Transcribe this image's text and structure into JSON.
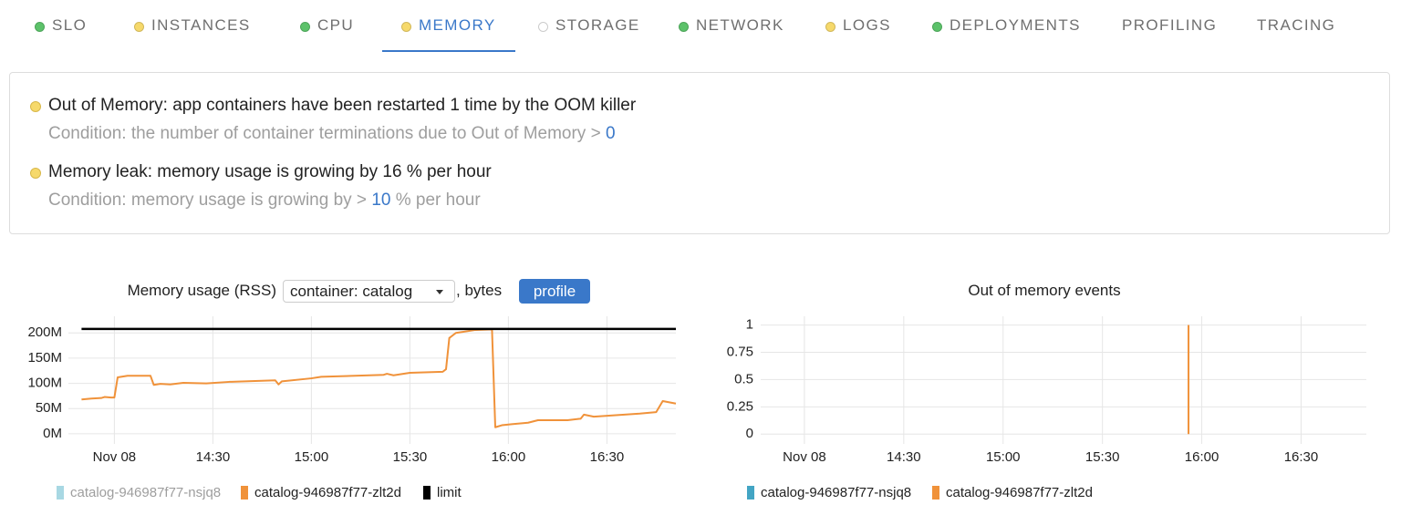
{
  "tabs": [
    {
      "label": "SLO",
      "status": "#5cc26a"
    },
    {
      "label": "INSTANCES",
      "status": "#f6d96b"
    },
    {
      "label": "CPU",
      "status": "#5cc26a"
    },
    {
      "label": "MEMORY",
      "status": "#f6d96b",
      "active": true
    },
    {
      "label": "STORAGE",
      "status": "#ffffff"
    },
    {
      "label": "NETWORK",
      "status": "#5cc26a"
    },
    {
      "label": "LOGS",
      "status": "#f6d96b"
    },
    {
      "label": "DEPLOYMENTS",
      "status": "#5cc26a"
    },
    {
      "label": "PROFILING"
    },
    {
      "label": "TRACING"
    }
  ],
  "alerts": [
    {
      "status": "#f6d96b",
      "title": "Out of Memory: app containers have been restarted 1 time by the OOM killer",
      "condition": "Condition: the number of container terminations due to Out of Memory > ",
      "threshold": 0
    },
    {
      "status": "#f6d96b",
      "title": "Memory leak: memory usage is growing by 16 % per hour",
      "condition": "Condition: memory usage is growing by > ",
      "threshold": 10,
      "unit": " % per hour"
    }
  ],
  "chart_data": [
    {
      "type": "line",
      "title": "Memory usage (RSS)",
      "selector": "container: catalog",
      "unit_label": ", bytes",
      "button": "profile",
      "xlim": [
        826,
        1011
      ],
      "xticks": [
        {
          "value": 840,
          "label": "Nov 08"
        },
        {
          "value": 870,
          "label": "14:30"
        },
        {
          "value": 900,
          "label": "15:00"
        },
        {
          "value": 930,
          "label": "15:30"
        },
        {
          "value": 960,
          "label": "16:00"
        },
        {
          "value": 990,
          "label": "16:30"
        }
      ],
      "ylim": [
        -20000000,
        233000000
      ],
      "yticks": [
        {
          "value": 0,
          "label": "0M"
        },
        {
          "value": 50000000,
          "label": "50M"
        },
        {
          "value": 100000000,
          "label": "100M"
        },
        {
          "value": 150000000,
          "label": "150M"
        },
        {
          "value": 200000000,
          "label": "200M"
        }
      ],
      "grid": true,
      "x": [
        830,
        833,
        836,
        837,
        839,
        840,
        841,
        844,
        851,
        852,
        854,
        857,
        861,
        868,
        875,
        889,
        890,
        891,
        900,
        903,
        922,
        923,
        925,
        930,
        940,
        941,
        942,
        944,
        950,
        955,
        956,
        958,
        961,
        966,
        969,
        978,
        982,
        983,
        986,
        1000,
        1005,
        1007,
        1011
      ],
      "series": [
        {
          "name": "catalog-946987f77-nsjq8",
          "color": "#a8d8e3",
          "hidden": true,
          "values": [
            null,
            null,
            null,
            null,
            null,
            null,
            null,
            null,
            null,
            null,
            null,
            null,
            null,
            null,
            null,
            null,
            null,
            null,
            null,
            null,
            null,
            null,
            null,
            null,
            null,
            null,
            null,
            null,
            null,
            null,
            null,
            null,
            null,
            null,
            null,
            null,
            null,
            null,
            null,
            null,
            null,
            null,
            null
          ]
        },
        {
          "name": "catalog-946987f77-zlt2d",
          "color": "#f0923a",
          "values": [
            68000000,
            70000000,
            71000000,
            73000000,
            72000000,
            72000000,
            112000000,
            115000000,
            115000000,
            97000000,
            99000000,
            98000000,
            101000000,
            100000000,
            103000000,
            106000000,
            98000000,
            104000000,
            110000000,
            113000000,
            117000000,
            119000000,
            116000000,
            121000000,
            123000000,
            128000000,
            190000000,
            200000000,
            206000000,
            207000000,
            13000000,
            17000000,
            19000000,
            22000000,
            27000000,
            27000000,
            30000000,
            38000000,
            34000000,
            40000000,
            43000000,
            65000000,
            60000000
          ]
        },
        {
          "name": "limit",
          "color": "#000000",
          "values": [
            208000000,
            208000000,
            208000000,
            208000000,
            208000000,
            208000000,
            208000000,
            208000000,
            208000000,
            208000000,
            208000000,
            208000000,
            208000000,
            208000000,
            208000000,
            208000000,
            208000000,
            208000000,
            208000000,
            208000000,
            208000000,
            208000000,
            208000000,
            208000000,
            208000000,
            208000000,
            208000000,
            208000000,
            208000000,
            208000000,
            208000000,
            208000000,
            208000000,
            208000000,
            208000000,
            208000000,
            208000000,
            208000000,
            208000000,
            208000000,
            208000000,
            208000000,
            208000000
          ]
        }
      ]
    },
    {
      "type": "bar",
      "title": "Out of memory events",
      "xlim": [
        826.8,
        1009.7
      ],
      "xticks": [
        {
          "value": 840,
          "label": "Nov 08"
        },
        {
          "value": 870,
          "label": "14:30"
        },
        {
          "value": 900,
          "label": "15:00"
        },
        {
          "value": 930,
          "label": "15:30"
        },
        {
          "value": 960,
          "label": "16:00"
        },
        {
          "value": 990,
          "label": "16:30"
        }
      ],
      "ylim": [
        -0.09,
        1.08
      ],
      "yticks": [
        0,
        0.25,
        0.5,
        0.75,
        1
      ],
      "grid": true,
      "x": [
        956
      ],
      "series": [
        {
          "name": "catalog-946987f77-nsjq8",
          "color": "#43a5c4",
          "values": [
            null
          ]
        },
        {
          "name": "catalog-946987f77-zlt2d",
          "color": "#f0923a",
          "values": [
            1
          ]
        }
      ]
    }
  ]
}
